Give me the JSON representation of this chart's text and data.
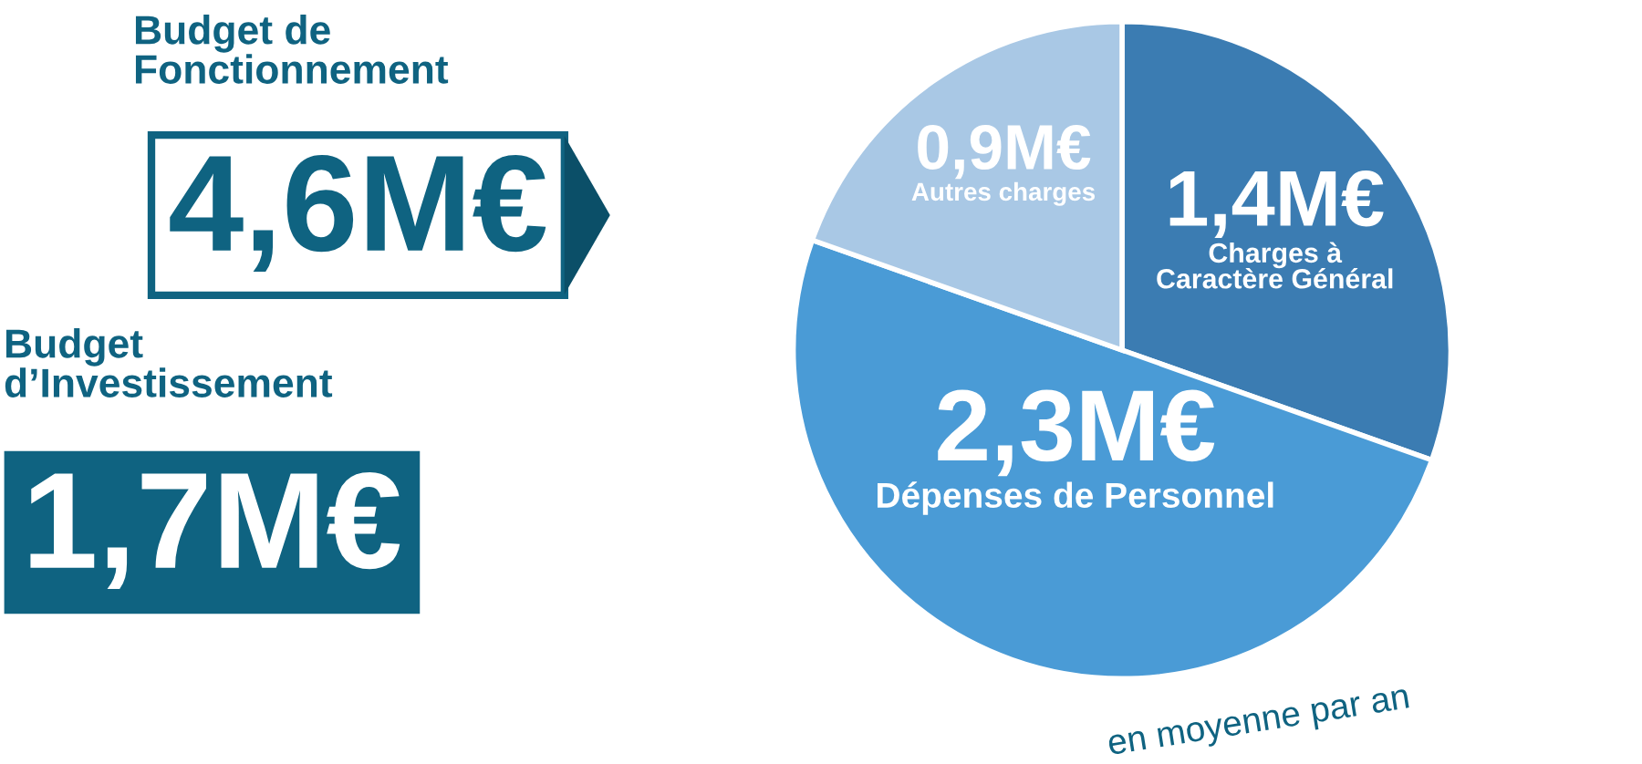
{
  "chart_data": [
    {
      "type": "pie",
      "title": "Budget de Fonctionnement",
      "categories": [
        "Charges à Caractère Général",
        "Dépenses de Personnel",
        "Autres charges"
      ],
      "values": [
        1.4,
        2.3,
        0.9
      ],
      "colors": [
        "#3b7cb2",
        "#4a9bd6",
        "#a9c8e5"
      ],
      "value_labels": [
        "1,4M€",
        "2,3M€",
        "0,9M€"
      ],
      "annotations": [
        "4,6M€",
        "en moyenne par an"
      ]
    },
    {
      "type": "other",
      "title": "Budget d’Investissement",
      "annotations": [
        "1,7M€"
      ]
    }
  ]
}
